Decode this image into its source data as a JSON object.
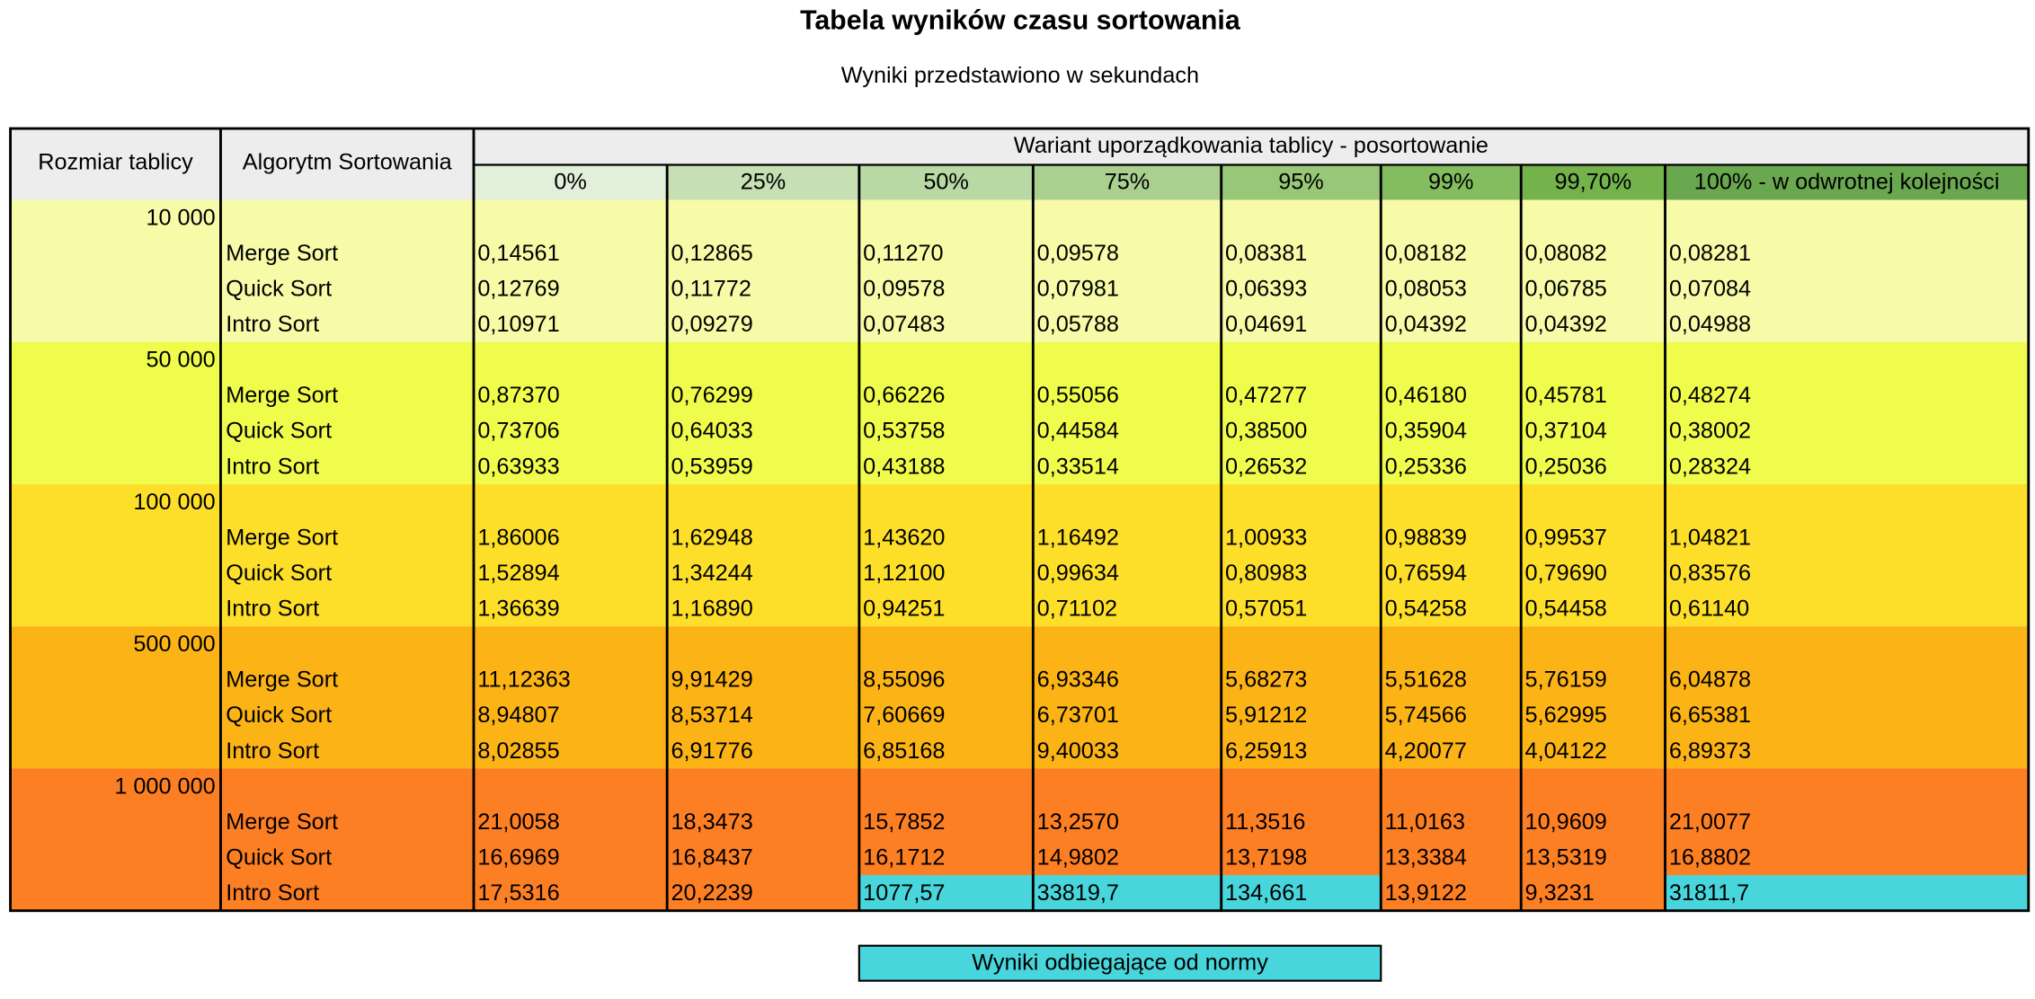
{
  "title": "Tabela wyników czasu sortowania",
  "subtitle": "Wyniki przedstawiono w sekundach",
  "table": {
    "headers": {
      "size": "Rozmiar tablicy",
      "algorithm": "Algorytm Sortowania",
      "variant": "Wariant uporządkowania tablicy - posortowanie",
      "columns": [
        {
          "label": "0%",
          "color": "#e2efda"
        },
        {
          "label": "25%",
          "color": "#c6e0b4"
        },
        {
          "label": "50%",
          "color": "#b8d9a3"
        },
        {
          "label": "75%",
          "color": "#a9d08e"
        },
        {
          "label": "95%",
          "color": "#97c777"
        },
        {
          "label": "99%",
          "color": "#84bd5f"
        },
        {
          "label": "99,70%",
          "color": "#74b24b"
        },
        {
          "label": "100% - w odwrotnej kolejności",
          "color": "#6aa84f"
        }
      ]
    },
    "groups": [
      {
        "size": "10 000",
        "color": "#f7fba8",
        "rows": [
          {
            "algorithm": "Merge Sort",
            "values": [
              "0,14561",
              "0,12865",
              "0,11270",
              "0,09578",
              "0,08381",
              "0,08182",
              "0,08082",
              "0,08281"
            ]
          },
          {
            "algorithm": "Quick Sort",
            "values": [
              "0,12769",
              "0,11772",
              "0,09578",
              "0,07981",
              "0,06393",
              "0,08053",
              "0,06785",
              "0,07084"
            ]
          },
          {
            "algorithm": "Intro Sort",
            "values": [
              "0,10971",
              "0,09279",
              "0,07483",
              "0,05788",
              "0,04691",
              "0,04392",
              "0,04392",
              "0,04988"
            ]
          }
        ]
      },
      {
        "size": "50 000",
        "color": "#f0fc4c",
        "rows": [
          {
            "algorithm": "Merge Sort",
            "values": [
              "0,87370",
              "0,76299",
              "0,66226",
              "0,55056",
              "0,47277",
              "0,46180",
              "0,45781",
              "0,48274"
            ]
          },
          {
            "algorithm": "Quick Sort",
            "values": [
              "0,73706",
              "0,64033",
              "0,53758",
              "0,44584",
              "0,38500",
              "0,35904",
              "0,37104",
              "0,38002"
            ]
          },
          {
            "algorithm": "Intro Sort",
            "values": [
              "0,63933",
              "0,53959",
              "0,43188",
              "0,33514",
              "0,26532",
              "0,25336",
              "0,25036",
              "0,28324"
            ]
          }
        ]
      },
      {
        "size": "100 000",
        "color": "#fddf2a",
        "rows": [
          {
            "algorithm": "Merge Sort",
            "values": [
              "1,86006",
              "1,62948",
              "1,43620",
              "1,16492",
              "1,00933",
              "0,98839",
              "0,99537",
              "1,04821"
            ]
          },
          {
            "algorithm": "Quick Sort",
            "values": [
              "1,52894",
              "1,34244",
              "1,12100",
              "0,99634",
              "0,80983",
              "0,76594",
              "0,79690",
              "0,83576"
            ]
          },
          {
            "algorithm": "Intro Sort",
            "values": [
              "1,36639",
              "1,16890",
              "0,94251",
              "0,71102",
              "0,57051",
              "0,54258",
              "0,54458",
              "0,61140"
            ]
          }
        ]
      },
      {
        "size": "500 000",
        "color": "#fcb316",
        "rows": [
          {
            "algorithm": "Merge Sort",
            "values": [
              "11,12363",
              "9,91429",
              "8,55096",
              "6,93346",
              "5,68273",
              "5,51628",
              "5,76159",
              "6,04878"
            ]
          },
          {
            "algorithm": "Quick Sort",
            "values": [
              "8,94807",
              "8,53714",
              "7,60669",
              "6,73701",
              "5,91212",
              "5,74566",
              "5,62995",
              "6,65381"
            ]
          },
          {
            "algorithm": "Intro Sort",
            "values": [
              "8,02855",
              "6,91776",
              "6,85168",
              "9,40033",
              "6,25913",
              "4,20077",
              "4,04122",
              "6,89373"
            ]
          }
        ]
      },
      {
        "size": "1 000 000",
        "color": "#fd7f24",
        "rows": [
          {
            "algorithm": "Merge Sort",
            "values": [
              "21,0058",
              "18,3473",
              "15,7852",
              "13,2570",
              "11,3516",
              "11,0163",
              "10,9609",
              "21,0077"
            ]
          },
          {
            "algorithm": "Quick Sort",
            "values": [
              "16,6969",
              "16,8437",
              "16,1712",
              "14,9802",
              "13,7198",
              "13,3384",
              "13,5319",
              "16,8802"
            ]
          },
          {
            "algorithm": "Intro Sort",
            "values": [
              "17,5316",
              "20,2239",
              "1077,57",
              "33819,7",
              "134,661",
              "13,9122",
              "9,3231",
              "31811,7"
            ],
            "highlight": [
              2,
              3,
              4,
              7
            ]
          }
        ]
      }
    ]
  },
  "legend": {
    "label": "Wyniki odbiegające od normy",
    "color": "#48d6dc"
  }
}
